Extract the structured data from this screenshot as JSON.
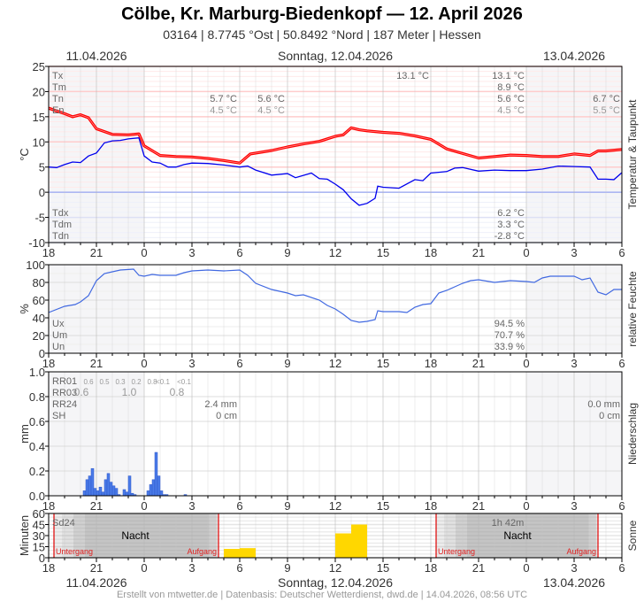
{
  "header": {
    "title": "Cölbe, Kr. Marburg-Biedenkopf  —  12. April 2026",
    "subtitle": "03164  |  8.7745 °Ost  |  50.8492 °Nord  |  187 Meter  |  Hessen"
  },
  "date_labels": {
    "left": "11.04.2026",
    "center": "Sonntag, 12.04.2026",
    "right": "13.04.2026"
  },
  "footer": "Erstellt von mtwetter.de | Datenbasis: Deutscher Wetterdienst, dwd.de | 14.04.2026, 08:56 UTC",
  "colors": {
    "temperature": "#ff0000",
    "dewpoint": "#0000ee",
    "humidity": "#4169e1",
    "precipitation": "#4a7be8",
    "sunshine": "#ffd700",
    "sun_event": "#e00000"
  },
  "chart_data": [
    {
      "type": "line",
      "panel": "temperature",
      "ylabel": "°C",
      "side_label": "Temperatur & Taupunkt",
      "xlim": [
        "2026-04-11T18:00",
        "2026-04-13T06:00"
      ],
      "xticks": [
        "18",
        "21",
        "0",
        "3",
        "6",
        "9",
        "12",
        "15",
        "18",
        "21",
        "0",
        "3",
        "6"
      ],
      "ylim": [
        -10,
        25
      ],
      "yticks": [
        -10,
        -5,
        0,
        5,
        10,
        15,
        20,
        25
      ],
      "grid": true,
      "legend_labels": [
        "Tx",
        "Tm",
        "Tn",
        "En",
        "Tdx",
        "Tdm",
        "Tdn"
      ],
      "annotations": {
        "day1": {
          "Tn": "5.7 °C",
          "En": "4.5 °C"
        },
        "day1b": {
          "Tn": "5.6 °C",
          "En": "4.5 °C"
        },
        "day2_tx_peak": "13.1 °C",
        "day2": {
          "Tx": "13.1 °C",
          "Tm": "8.9 °C",
          "Tn": "5.6 °C",
          "En": "4.5 °C",
          "Tdx": "6.2 °C",
          "Tdm": "3.3 °C",
          "Tdn": "-2.8 °C"
        },
        "day3": {
          "Tn": "6.7 °C",
          "En": "5.5 °C"
        }
      },
      "series": [
        {
          "key": "temperature",
          "points": [
            [
              "2026-04-11T18:00",
              16.7
            ],
            [
              "2026-04-11T19:00",
              15.6
            ],
            [
              "2026-04-11T19:30",
              15.0
            ],
            [
              "2026-04-11T20:00",
              15.4
            ],
            [
              "2026-04-11T20:30",
              14.8
            ],
            [
              "2026-04-11T21:00",
              12.6
            ],
            [
              "2026-04-11T22:00",
              11.5
            ],
            [
              "2026-04-11T23:00",
              11.4
            ],
            [
              "2026-04-11T23:40",
              11.6
            ],
            [
              "2026-04-12T00:00",
              9.2
            ],
            [
              "2026-04-12T01:00",
              7.3
            ],
            [
              "2026-04-12T02:00",
              7.1
            ],
            [
              "2026-04-12T03:00",
              7.0
            ],
            [
              "2026-04-12T04:00",
              6.7
            ],
            [
              "2026-04-12T05:00",
              6.3
            ],
            [
              "2026-04-12T06:00",
              5.8
            ],
            [
              "2026-04-12T06:40",
              7.6
            ],
            [
              "2026-04-12T08:00",
              8.3
            ],
            [
              "2026-04-12T09:00",
              9.0
            ],
            [
              "2026-04-12T10:00",
              9.6
            ],
            [
              "2026-04-12T11:00",
              10.1
            ],
            [
              "2026-04-12T12:00",
              11.1
            ],
            [
              "2026-04-12T12:30",
              11.4
            ],
            [
              "2026-04-12T13:00",
              12.8
            ],
            [
              "2026-04-12T13:30",
              12.4
            ],
            [
              "2026-04-12T14:00",
              12.2
            ],
            [
              "2026-04-12T15:00",
              11.9
            ],
            [
              "2026-04-12T16:00",
              11.7
            ],
            [
              "2026-04-12T17:00",
              11.2
            ],
            [
              "2026-04-12T18:00",
              10.5
            ],
            [
              "2026-04-12T19:00",
              8.6
            ],
            [
              "2026-04-12T20:00",
              7.7
            ],
            [
              "2026-04-12T21:00",
              6.8
            ],
            [
              "2026-04-12T22:00",
              7.1
            ],
            [
              "2026-04-12T23:00",
              7.4
            ],
            [
              "2026-04-13T00:00",
              7.3
            ],
            [
              "2026-04-13T01:00",
              7.1
            ],
            [
              "2026-04-13T02:00",
              7.1
            ],
            [
              "2026-04-13T03:00",
              7.6
            ],
            [
              "2026-04-13T04:00",
              7.3
            ],
            [
              "2026-04-13T04:30",
              8.2
            ],
            [
              "2026-04-13T05:00",
              8.2
            ],
            [
              "2026-04-13T06:00",
              8.5
            ]
          ]
        },
        {
          "key": "dewpoint",
          "points": [
            [
              "2026-04-11T18:00",
              5.0
            ],
            [
              "2026-04-11T18:30",
              4.9
            ],
            [
              "2026-04-11T19:00",
              5.5
            ],
            [
              "2026-04-11T19:30",
              6.0
            ],
            [
              "2026-04-11T20:00",
              5.9
            ],
            [
              "2026-04-11T20:30",
              7.2
            ],
            [
              "2026-04-11T21:00",
              7.8
            ],
            [
              "2026-04-11T21:30",
              9.8
            ],
            [
              "2026-04-11T22:00",
              10.2
            ],
            [
              "2026-04-11T22:30",
              10.3
            ],
            [
              "2026-04-11T23:00",
              10.6
            ],
            [
              "2026-04-11T23:40",
              10.8
            ],
            [
              "2026-04-12T00:00",
              7.2
            ],
            [
              "2026-04-12T00:30",
              6.0
            ],
            [
              "2026-04-12T01:00",
              5.8
            ],
            [
              "2026-04-12T01:30",
              5.0
            ],
            [
              "2026-04-12T02:00",
              5.0
            ],
            [
              "2026-04-12T02:30",
              5.5
            ],
            [
              "2026-04-12T03:00",
              5.8
            ],
            [
              "2026-04-12T04:00",
              5.7
            ],
            [
              "2026-04-12T05:00",
              5.4
            ],
            [
              "2026-04-12T06:00",
              5.0
            ],
            [
              "2026-04-12T06:30",
              5.2
            ],
            [
              "2026-04-12T07:00",
              4.4
            ],
            [
              "2026-04-12T08:00",
              3.4
            ],
            [
              "2026-04-12T09:00",
              3.7
            ],
            [
              "2026-04-12T09:30",
              2.9
            ],
            [
              "2026-04-12T10:30",
              3.8
            ],
            [
              "2026-04-12T11:00",
              2.7
            ],
            [
              "2026-04-12T11:30",
              2.6
            ],
            [
              "2026-04-12T12:00",
              1.6
            ],
            [
              "2026-04-12T12:30",
              0.5
            ],
            [
              "2026-04-12T13:00",
              -1.3
            ],
            [
              "2026-04-12T13:30",
              -2.6
            ],
            [
              "2026-04-12T14:00",
              -2.2
            ],
            [
              "2026-04-12T14:30",
              -1.2
            ],
            [
              "2026-04-12T14:40",
              1.2
            ],
            [
              "2026-04-12T15:00",
              1.0
            ],
            [
              "2026-04-12T16:00",
              0.8
            ],
            [
              "2026-04-12T17:00",
              2.5
            ],
            [
              "2026-04-12T17:30",
              2.3
            ],
            [
              "2026-04-12T18:00",
              3.8
            ],
            [
              "2026-04-12T19:00",
              4.1
            ],
            [
              "2026-04-12T19:30",
              4.8
            ],
            [
              "2026-04-12T20:00",
              4.9
            ],
            [
              "2026-04-12T21:00",
              4.2
            ],
            [
              "2026-04-12T22:00",
              4.4
            ],
            [
              "2026-04-12T23:00",
              4.3
            ],
            [
              "2026-04-13T00:00",
              4.3
            ],
            [
              "2026-04-13T01:00",
              4.6
            ],
            [
              "2026-04-13T02:00",
              5.2
            ],
            [
              "2026-04-13T03:00",
              5.1
            ],
            [
              "2026-04-13T04:00",
              5.0
            ],
            [
              "2026-04-13T04:30",
              2.6
            ],
            [
              "2026-04-13T05:00",
              2.6
            ],
            [
              "2026-04-13T05:30",
              2.5
            ],
            [
              "2026-04-13T06:00",
              3.9
            ]
          ]
        }
      ]
    },
    {
      "type": "line",
      "panel": "humidity",
      "ylabel": "%",
      "side_label": "relative Feuchte",
      "ylim": [
        0,
        100
      ],
      "yticks": [
        0,
        20,
        40,
        60,
        80,
        100
      ],
      "grid": true,
      "legend_labels": [
        "Ux",
        "Um",
        "Un"
      ],
      "annotations": {
        "Ux": "94.5 %",
        "Um": "70.7 %",
        "Un": "33.9 %"
      },
      "series": [
        {
          "key": "humidity",
          "points": [
            [
              "2026-04-11T18:00",
              46
            ],
            [
              "2026-04-11T19:00",
              53
            ],
            [
              "2026-04-11T19:40",
              55
            ],
            [
              "2026-04-11T20:00",
              58
            ],
            [
              "2026-04-11T20:30",
              65
            ],
            [
              "2026-04-11T21:00",
              82
            ],
            [
              "2026-04-11T21:30",
              90
            ],
            [
              "2026-04-11T22:00",
              92
            ],
            [
              "2026-04-11T22:30",
              94
            ],
            [
              "2026-04-11T23:20",
              95
            ],
            [
              "2026-04-11T23:40",
              88
            ],
            [
              "2026-04-12T00:00",
              87
            ],
            [
              "2026-04-12T00:30",
              89
            ],
            [
              "2026-04-12T01:00",
              88
            ],
            [
              "2026-04-12T02:00",
              88
            ],
            [
              "2026-04-12T02:30",
              91
            ],
            [
              "2026-04-12T03:00",
              93
            ],
            [
              "2026-04-12T04:00",
              94
            ],
            [
              "2026-04-12T05:00",
              93
            ],
            [
              "2026-04-12T06:00",
              94
            ],
            [
              "2026-04-12T06:30",
              88
            ],
            [
              "2026-04-12T07:00",
              79
            ],
            [
              "2026-04-12T08:00",
              72
            ],
            [
              "2026-04-12T09:00",
              68
            ],
            [
              "2026-04-12T09:30",
              65
            ],
            [
              "2026-04-12T10:00",
              66
            ],
            [
              "2026-04-12T11:00",
              60
            ],
            [
              "2026-04-12T11:30",
              54
            ],
            [
              "2026-04-12T12:00",
              50
            ],
            [
              "2026-04-12T12:30",
              44
            ],
            [
              "2026-04-12T13:00",
              37
            ],
            [
              "2026-04-12T13:30",
              35
            ],
            [
              "2026-04-12T14:00",
              36
            ],
            [
              "2026-04-12T14:30",
              38
            ],
            [
              "2026-04-12T14:40",
              48
            ],
            [
              "2026-04-12T15:00",
              47
            ],
            [
              "2026-04-12T16:00",
              47
            ],
            [
              "2026-04-12T16:30",
              46
            ],
            [
              "2026-04-12T17:00",
              52
            ],
            [
              "2026-04-12T17:30",
              55
            ],
            [
              "2026-04-12T18:00",
              56
            ],
            [
              "2026-04-12T18:30",
              68
            ],
            [
              "2026-04-12T19:00",
              71
            ],
            [
              "2026-04-12T19:30",
              75
            ],
            [
              "2026-04-12T20:00",
              79
            ],
            [
              "2026-04-12T20:30",
              82
            ],
            [
              "2026-04-12T21:00",
              83
            ],
            [
              "2026-04-12T22:00",
              80
            ],
            [
              "2026-04-12T23:00",
              82
            ],
            [
              "2026-04-13T00:00",
              81
            ],
            [
              "2026-04-13T00:30",
              80
            ],
            [
              "2026-04-13T01:00",
              85
            ],
            [
              "2026-04-13T01:30",
              87
            ],
            [
              "2026-04-13T02:00",
              87
            ],
            [
              "2026-04-13T03:00",
              87
            ],
            [
              "2026-04-13T03:30",
              83
            ],
            [
              "2026-04-13T04:00",
              85
            ],
            [
              "2026-04-13T04:30",
              69
            ],
            [
              "2026-04-13T05:00",
              66
            ],
            [
              "2026-04-13T05:30",
              72
            ],
            [
              "2026-04-13T06:00",
              72
            ]
          ]
        }
      ]
    },
    {
      "type": "bar",
      "panel": "precipitation",
      "ylabel": "mm",
      "side_label": "Niederschlag",
      "ylim": [
        0,
        1.0
      ],
      "yticks": [
        "0.0",
        "0.2",
        "0.4",
        "0.6",
        "0.8",
        "1.0"
      ],
      "grid": true,
      "legend_labels": [
        "RR01",
        "RR03",
        "RR24",
        "SH"
      ],
      "rr01_labels": [
        [
          "2026-04-11T20:30",
          "0.6"
        ],
        [
          "2026-04-11T21:30",
          "0.5"
        ],
        [
          "2026-04-11T22:30",
          "0.3"
        ],
        [
          "2026-04-11T23:30",
          "0.2"
        ],
        [
          "2026-04-12T00:30",
          "0.8"
        ],
        [
          "2026-04-12T01:10",
          "<0.1"
        ],
        [
          "2026-04-12T02:30",
          "<0.1"
        ]
      ],
      "rr03_labels": [
        [
          "2026-04-11T19:30",
          "0.6"
        ],
        [
          "2026-04-11T22:30",
          "1.0"
        ],
        [
          "2026-04-12T01:30",
          "0.8"
        ]
      ],
      "annotations": {
        "day2": {
          "RR24": "2.4 mm",
          "SH": "0 cm"
        },
        "day3": {
          "RR24": "0.0 mm",
          "SH": "0 cm"
        }
      },
      "bar_minutes": 10,
      "bars": [
        [
          "2026-04-11T20:20",
          0.04
        ],
        [
          "2026-04-11T20:30",
          0.13
        ],
        [
          "2026-04-11T20:40",
          0.16
        ],
        [
          "2026-04-11T20:50",
          0.22
        ],
        [
          "2026-04-11T21:00",
          0.06
        ],
        [
          "2026-04-11T21:10",
          0.04
        ],
        [
          "2026-04-11T21:20",
          0.07
        ],
        [
          "2026-04-11T21:30",
          0.03
        ],
        [
          "2026-04-11T21:40",
          0.13
        ],
        [
          "2026-04-11T21:50",
          0.18
        ],
        [
          "2026-04-11T22:00",
          0.11
        ],
        [
          "2026-04-11T22:10",
          0.08
        ],
        [
          "2026-04-11T22:20",
          0.06
        ],
        [
          "2026-04-11T22:30",
          0.01
        ],
        [
          "2026-04-11T22:50",
          0.05
        ],
        [
          "2026-04-11T23:00",
          0.03
        ],
        [
          "2026-04-11T23:10",
          0.16
        ],
        [
          "2026-04-11T23:20",
          0.02
        ],
        [
          "2026-04-11T23:30",
          0.01
        ],
        [
          "2026-04-12T00:20",
          0.04
        ],
        [
          "2026-04-12T00:30",
          0.09
        ],
        [
          "2026-04-12T00:40",
          0.13
        ],
        [
          "2026-04-12T00:50",
          0.35
        ],
        [
          "2026-04-12T01:00",
          0.16
        ],
        [
          "2026-04-12T01:10",
          0.04
        ],
        [
          "2026-04-12T01:20",
          0.01
        ],
        [
          "2026-04-12T01:30",
          0.01
        ],
        [
          "2026-04-12T02:40",
          0.01
        ]
      ]
    },
    {
      "type": "bar",
      "panel": "sunshine",
      "ylabel": "Minuten",
      "side_label": "Sonne",
      "ylim": [
        0,
        60
      ],
      "yticks": [
        0,
        15,
        30,
        45,
        60
      ],
      "grid": true,
      "legend_labels": [
        "Sd24"
      ],
      "sd24_day2": "1h 42m",
      "night_label": "Nacht",
      "sunset_label": "Untergang",
      "sunrise_label": "Aufgang",
      "sun_events": {
        "sunset": [
          "2026-04-11T18:20",
          "2026-04-12T18:20"
        ],
        "sunrise": [
          "2026-04-12T04:40",
          "2026-04-13T04:30"
        ]
      },
      "bar_minutes": 60,
      "bars": [
        [
          "2026-04-12T05:00",
          12
        ],
        [
          "2026-04-12T06:00",
          13
        ],
        [
          "2026-04-12T12:00",
          33
        ],
        [
          "2026-04-12T13:00",
          45
        ]
      ]
    }
  ]
}
